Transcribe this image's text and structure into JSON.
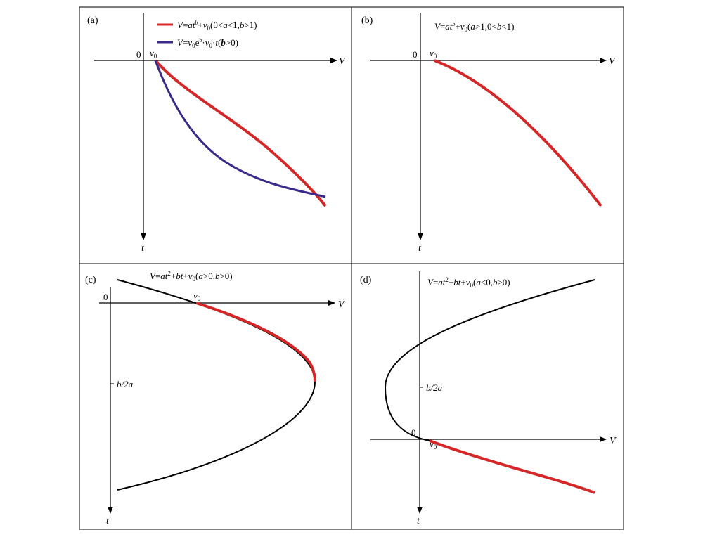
{
  "panels": {
    "a": {
      "tag": "(a)",
      "origin": "0",
      "v0": "v",
      "v0_sub": "0",
      "x_axis": "V",
      "y_axis": "t",
      "legend": [
        {
          "text": "V=at^b+v0(0<a<1,b>1)",
          "color": "#d62728"
        },
        {
          "text": "V=v0e^b·v0·t(b>0)",
          "color": "#3b2a8a"
        }
      ]
    },
    "b": {
      "tag": "(b)",
      "origin": "0",
      "v0": "v",
      "v0_sub": "0",
      "x_axis": "V",
      "y_axis": "t",
      "equation": "V=at^b+v0(a>1,0<b<1)"
    },
    "c": {
      "tag": "(c)",
      "origin": "0",
      "v0": "v",
      "v0_sub": "0",
      "x_axis": "V",
      "y_axis": "t",
      "equation": "V=at²+bt+v0(a>0,b>0)",
      "tick": "b/2a"
    },
    "d": {
      "tag": "(d)",
      "origin": "0",
      "v0": "v",
      "v0_sub": "0",
      "x_axis": "V",
      "y_axis": "t",
      "equation": "V=at²+bt+v0(a<0,b>0)",
      "tick": "b/2a"
    }
  },
  "colors": {
    "red": "#d62728",
    "blue": "#3b2a8a",
    "black": "#000000"
  }
}
